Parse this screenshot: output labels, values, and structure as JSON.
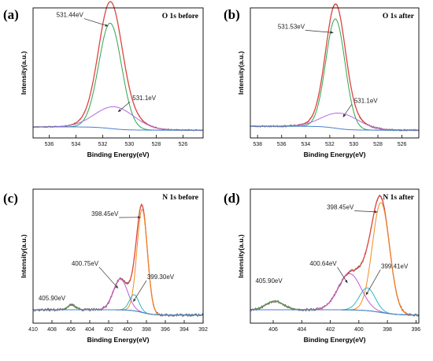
{
  "chart_data": [
    {
      "type": "line",
      "letter": "(a)",
      "title": "O 1s before",
      "xlabel": "Binding Energy(eV)",
      "ylabel": "Intensity(a.u.)",
      "xlim": [
        537.2,
        524.5
      ],
      "xticks": [
        536,
        534,
        532,
        530,
        528,
        526
      ],
      "ylim": [
        0,
        1
      ],
      "series": [
        {
          "role": "raw",
          "color": "#555555",
          "kind": "raw",
          "noise": 0.006,
          "seed": 11,
          "components": [
            {
              "peak": 531.44,
              "width": 0.85,
              "height": 0.81
            },
            {
              "peak": 531.1,
              "width": 1.45,
              "height": 0.17
            }
          ],
          "baseline": {
            "left": 0.025,
            "right": 0.0
          }
        },
        {
          "role": "envelope",
          "color": "#e0463f",
          "kind": "sum",
          "components": [
            {
              "peak": 531.44,
              "width": 0.85,
              "height": 0.81
            },
            {
              "peak": 531.1,
              "width": 1.45,
              "height": 0.17
            }
          ],
          "baseline": {
            "left": 0.025,
            "right": 0.0
          }
        },
        {
          "role": "component",
          "color": "#2fa44f",
          "kind": "peak",
          "peak": 531.44,
          "width": 0.85,
          "height": 0.81,
          "baseline": {
            "left": 0.025,
            "right": 0.0
          }
        },
        {
          "role": "component",
          "color": "#b26be0",
          "kind": "peak",
          "peak": 531.1,
          "width": 1.45,
          "height": 0.17,
          "baseline": {
            "left": 0.025,
            "right": 0.0
          }
        },
        {
          "role": "background",
          "color": "#4a7fd0",
          "kind": "baseline",
          "baseline": {
            "left": 0.025,
            "right": 0.0
          }
        }
      ],
      "annotations": [
        {
          "text": "531.44eV",
          "x": 534.45,
          "y": 0.93,
          "ax": 531.6,
          "ay": 0.86
        },
        {
          "text": "531.1eV",
          "x": 528.9,
          "y": 0.29,
          "ax": 530.85,
          "ay": 0.2
        }
      ]
    },
    {
      "type": "line",
      "letter": "(b)",
      "title": "O 1s after",
      "xlabel": "Binding Energy(eV)",
      "ylabel": "Intensity(a.u.)",
      "xlim": [
        538.6,
        524.6
      ],
      "xticks": [
        538,
        536,
        534,
        532,
        530,
        528,
        526
      ],
      "ylim": [
        0,
        1
      ],
      "series": [
        {
          "role": "raw",
          "color": "#555555",
          "kind": "raw",
          "noise": 0.008,
          "seed": 23,
          "components": [
            {
              "peak": 531.53,
              "width": 0.8,
              "height": 0.84
            },
            {
              "peak": 531.1,
              "width": 1.5,
              "height": 0.12
            }
          ],
          "baseline": {
            "left": 0.03,
            "right": 0.0
          }
        },
        {
          "role": "envelope",
          "color": "#e0463f",
          "kind": "sum",
          "components": [
            {
              "peak": 531.53,
              "width": 0.8,
              "height": 0.84
            },
            {
              "peak": 531.1,
              "width": 1.5,
              "height": 0.12
            }
          ],
          "baseline": {
            "left": 0.03,
            "right": 0.0
          }
        },
        {
          "role": "component",
          "color": "#2fa44f",
          "kind": "peak",
          "peak": 531.53,
          "width": 0.8,
          "height": 0.84,
          "baseline": {
            "left": 0.03,
            "right": 0.0
          }
        },
        {
          "role": "component",
          "color": "#b26be0",
          "kind": "peak",
          "peak": 531.1,
          "width": 1.5,
          "height": 0.12,
          "baseline": {
            "left": 0.03,
            "right": 0.0
          }
        },
        {
          "role": "background",
          "color": "#4a7fd0",
          "kind": "baseline",
          "baseline": {
            "left": 0.03,
            "right": 0.0
          }
        }
      ],
      "annotations": [
        {
          "text": "531.53eV",
          "x": 535.2,
          "y": 0.84,
          "ax": 531.7,
          "ay": 0.81
        },
        {
          "text": "531.1eV",
          "x": 529.0,
          "y": 0.27,
          "ax": 530.9,
          "ay": 0.16
        }
      ]
    },
    {
      "type": "line",
      "letter": "(c)",
      "title": "N 1s before",
      "xlabel": "Binding Energy(eV)",
      "ylabel": "Intensity(a.u.)",
      "xlim": [
        410,
        392
      ],
      "xticks": [
        410,
        408,
        406,
        404,
        402,
        400,
        398,
        396,
        394,
        392
      ],
      "ylim": [
        0,
        1
      ],
      "series": [
        {
          "role": "raw",
          "color": "#555555",
          "kind": "raw",
          "noise": 0.012,
          "seed": 37,
          "components": [
            {
              "peak": 398.45,
              "width": 0.55,
              "height": 0.77
            },
            {
              "peak": 400.75,
              "width": 0.75,
              "height": 0.23
            },
            {
              "peak": 399.3,
              "width": 0.5,
              "height": 0.12
            },
            {
              "peak": 405.9,
              "width": 0.45,
              "height": 0.035
            }
          ],
          "baseline": {
            "left": 0.04,
            "right": 0.0
          }
        },
        {
          "role": "envelope",
          "color": "#e0463f",
          "kind": "sum",
          "components": [
            {
              "peak": 398.45,
              "width": 0.55,
              "height": 0.77
            },
            {
              "peak": 400.75,
              "width": 0.75,
              "height": 0.23
            },
            {
              "peak": 399.3,
              "width": 0.5,
              "height": 0.12
            },
            {
              "peak": 405.9,
              "width": 0.45,
              "height": 0.035
            }
          ],
          "baseline": {
            "left": 0.04,
            "right": 0.0
          }
        },
        {
          "role": "component",
          "color": "#f08c1e",
          "kind": "peak",
          "peak": 398.45,
          "width": 0.55,
          "height": 0.77,
          "baseline": {
            "left": 0.04,
            "right": 0.0
          }
        },
        {
          "role": "component",
          "color": "#c05ad6",
          "kind": "peak",
          "peak": 400.75,
          "width": 0.75,
          "height": 0.23,
          "baseline": {
            "left": 0.04,
            "right": 0.0
          }
        },
        {
          "role": "component",
          "color": "#2bb8c9",
          "kind": "peak",
          "peak": 399.3,
          "width": 0.5,
          "height": 0.12,
          "baseline": {
            "left": 0.04,
            "right": 0.0
          }
        },
        {
          "role": "component",
          "color": "#2fa44f",
          "kind": "peak",
          "peak": 405.9,
          "width": 0.45,
          "height": 0.035,
          "baseline": {
            "left": 0.04,
            "right": 0.0
          }
        },
        {
          "role": "background",
          "color": "#4a7fd0",
          "kind": "baseline",
          "baseline": {
            "left": 0.04,
            "right": 0.0
          }
        }
      ],
      "annotations": [
        {
          "text": "398.45eV",
          "x": 402.4,
          "y": 0.8,
          "ax": 398.6,
          "ay": 0.79
        },
        {
          "text": "400.75eV",
          "x": 404.5,
          "y": 0.43,
          "ax": 401.0,
          "ay": 0.26
        },
        {
          "text": "399.30eV",
          "x": 396.5,
          "y": 0.33,
          "ax": 399.4,
          "ay": 0.16
        },
        {
          "text": "405.90eV",
          "x": 408.0,
          "y": 0.17
        }
      ]
    },
    {
      "type": "line",
      "letter": "(d)",
      "title": "N 1s after",
      "xlabel": "Binding Energy(eV)",
      "ylabel": "Intensity(a.u.)",
      "xlim": [
        407.6,
        395.8
      ],
      "xticks": [
        406,
        404,
        402,
        400,
        398,
        396
      ],
      "ylim": [
        0,
        1
      ],
      "series": [
        {
          "role": "raw",
          "color": "#555555",
          "kind": "raw",
          "noise": 0.012,
          "seed": 53,
          "components": [
            {
              "peak": 398.45,
              "width": 0.6,
              "height": 0.82
            },
            {
              "peak": 400.64,
              "width": 0.8,
              "height": 0.27
            },
            {
              "peak": 399.41,
              "width": 0.55,
              "height": 0.17
            },
            {
              "peak": 405.9,
              "width": 0.6,
              "height": 0.065
            }
          ],
          "baseline": {
            "left": 0.04,
            "right": 0.0
          }
        },
        {
          "role": "envelope",
          "color": "#e0463f",
          "kind": "sum",
          "components": [
            {
              "peak": 398.45,
              "width": 0.6,
              "height": 0.82
            },
            {
              "peak": 400.64,
              "width": 0.8,
              "height": 0.27
            },
            {
              "peak": 399.41,
              "width": 0.55,
              "height": 0.17
            },
            {
              "peak": 405.9,
              "width": 0.6,
              "height": 0.065
            }
          ],
          "baseline": {
            "left": 0.04,
            "right": 0.0
          }
        },
        {
          "role": "component",
          "color": "#f08c1e",
          "kind": "peak",
          "peak": 398.45,
          "width": 0.6,
          "height": 0.82,
          "baseline": {
            "left": 0.04,
            "right": 0.0
          }
        },
        {
          "role": "component",
          "color": "#c05ad6",
          "kind": "peak",
          "peak": 400.64,
          "width": 0.8,
          "height": 0.27,
          "baseline": {
            "left": 0.04,
            "right": 0.0
          }
        },
        {
          "role": "component",
          "color": "#2bb8c9",
          "kind": "peak",
          "peak": 399.41,
          "width": 0.55,
          "height": 0.17,
          "baseline": {
            "left": 0.04,
            "right": 0.0
          }
        },
        {
          "role": "component",
          "color": "#2fa44f",
          "kind": "peak",
          "peak": 405.9,
          "width": 0.6,
          "height": 0.065,
          "baseline": {
            "left": 0.04,
            "right": 0.0
          }
        },
        {
          "role": "background",
          "color": "#4a7fd0",
          "kind": "baseline",
          "baseline": {
            "left": 0.04,
            "right": 0.0
          }
        }
      ],
      "annotations": [
        {
          "text": "398.45eV",
          "x": 401.3,
          "y": 0.85,
          "ax": 398.7,
          "ay": 0.83
        },
        {
          "text": "400.64eV",
          "x": 402.5,
          "y": 0.43,
          "ax": 400.8,
          "ay": 0.3
        },
        {
          "text": "399.41eV",
          "x": 397.5,
          "y": 0.41,
          "ax": 399.5,
          "ay": 0.21
        },
        {
          "text": "405.90eV",
          "x": 406.3,
          "y": 0.3
        }
      ]
    }
  ]
}
